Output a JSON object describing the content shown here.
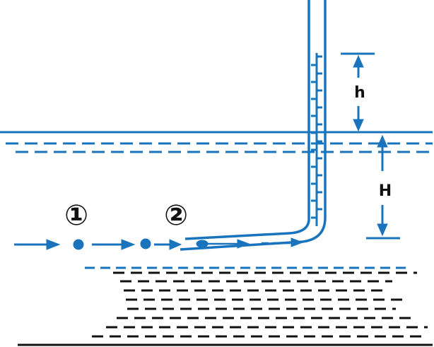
{
  "labels": {
    "h": "h",
    "H": "H",
    "point1": "①",
    "point2": "②"
  },
  "colors": {
    "water": "#1a74bd",
    "ground": "#111111"
  }
}
